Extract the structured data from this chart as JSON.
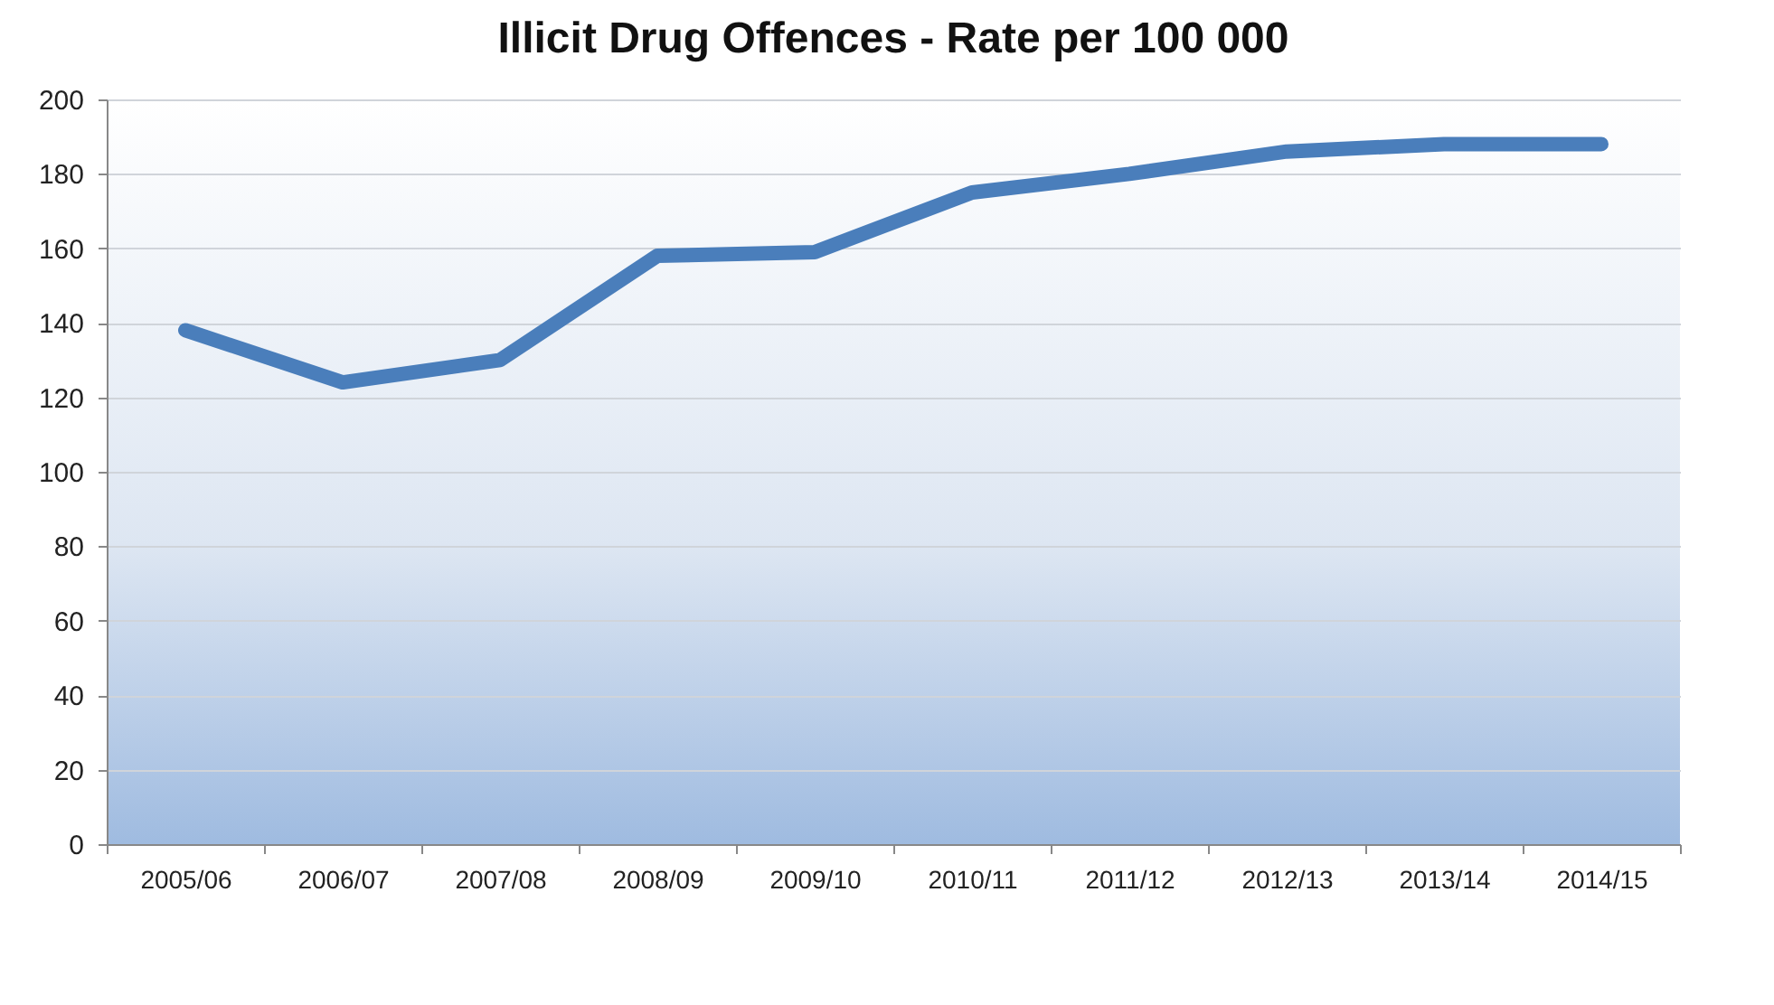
{
  "chart_data": {
    "type": "line",
    "title": "Illicit Drug Offences - Rate per 100 000",
    "categories": [
      "2005/06",
      "2006/07",
      "2007/08",
      "2008/09",
      "2009/10",
      "2010/11",
      "2011/12",
      "2012/13",
      "2013/14",
      "2014/15"
    ],
    "series": [
      {
        "color": "#4a7ebb",
        "values": [
          138,
          124,
          130,
          158,
          159,
          175,
          180,
          186,
          188,
          188
        ]
      }
    ],
    "ylim": [
      0,
      200
    ],
    "yticks": [
      0,
      20,
      40,
      60,
      80,
      100,
      120,
      140,
      160,
      180,
      200
    ],
    "grid": "y",
    "marker": "none",
    "line_style": "solid"
  }
}
